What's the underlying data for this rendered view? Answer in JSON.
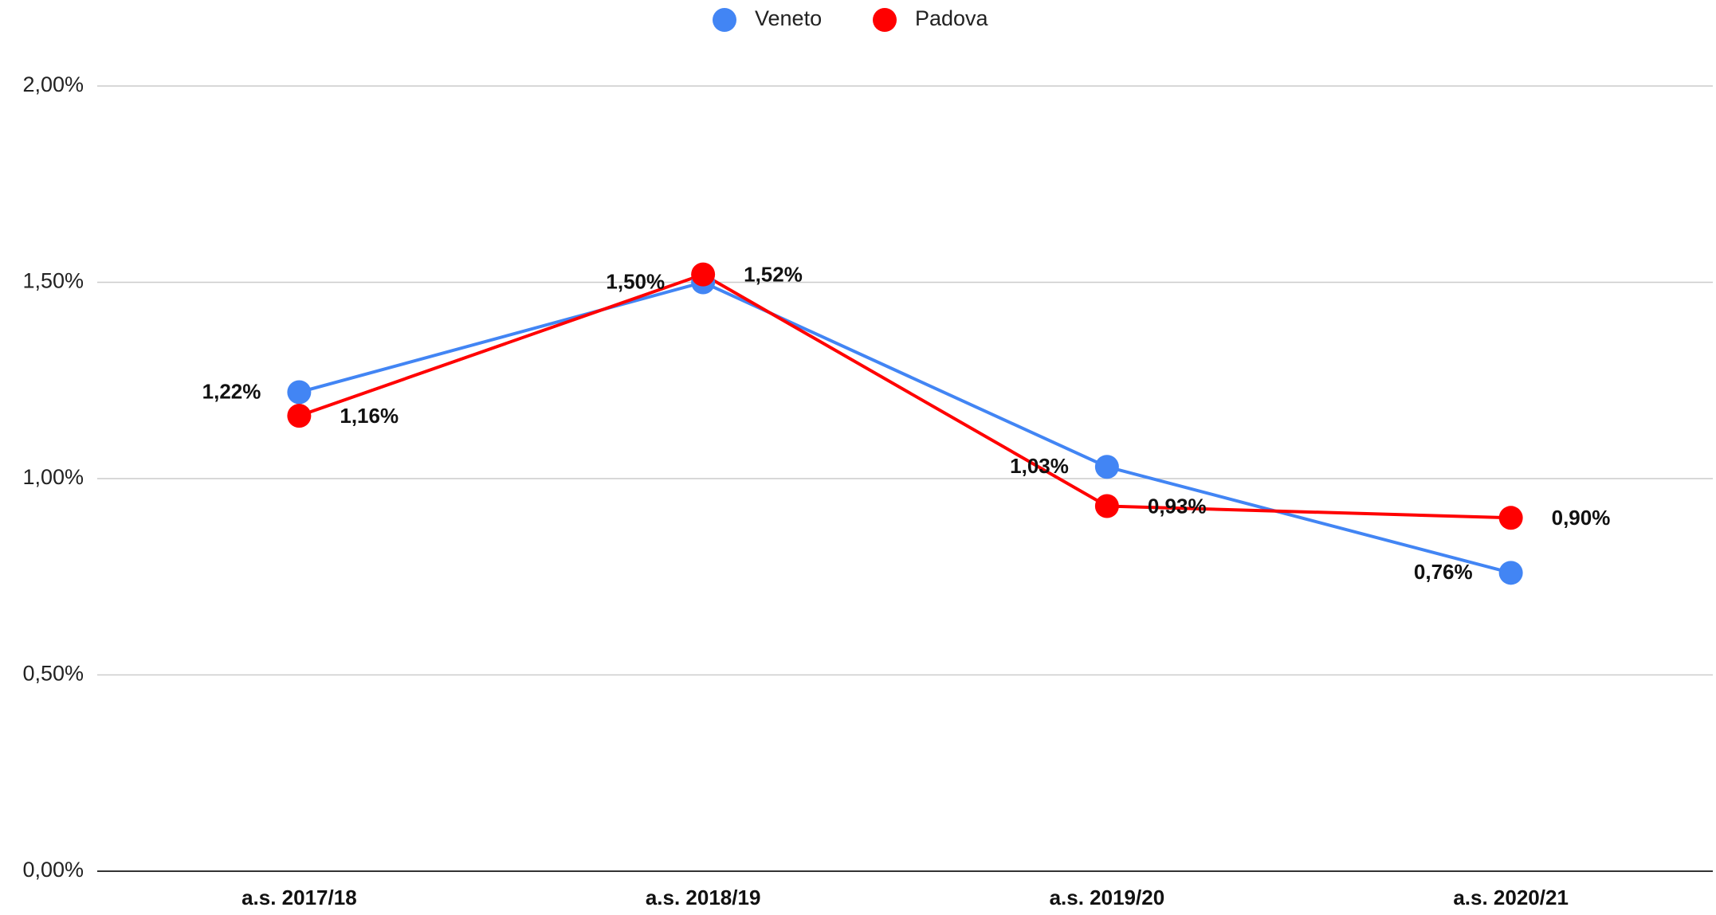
{
  "chart_data": {
    "type": "line",
    "categories": [
      "a.s. 2017/18",
      "a.s. 2018/19",
      "a.s. 2019/20",
      "a.s. 2020/21"
    ],
    "series": [
      {
        "name": "Veneto",
        "color": "#4285f4",
        "values": [
          1.22,
          1.5,
          1.03,
          0.76
        ],
        "value_labels": [
          "1,22%",
          "1,50%",
          "1,03%",
          "0,76%"
        ]
      },
      {
        "name": "Padova",
        "color": "#ff0000",
        "values": [
          1.16,
          1.52,
          0.93,
          0.9
        ],
        "value_labels": [
          "1,16%",
          "1,52%",
          "0,93%",
          "0,90%"
        ]
      }
    ],
    "ylim": [
      0,
      2
    ],
    "yticks": [
      {
        "value": 0,
        "label": "0,00%"
      },
      {
        "value": 0.5,
        "label": "0,50%"
      },
      {
        "value": 1,
        "label": "1,00%"
      },
      {
        "value": 1.5,
        "label": "1,50%"
      },
      {
        "value": 2,
        "label": "2,00%"
      }
    ],
    "grid": true,
    "legend": "top"
  }
}
